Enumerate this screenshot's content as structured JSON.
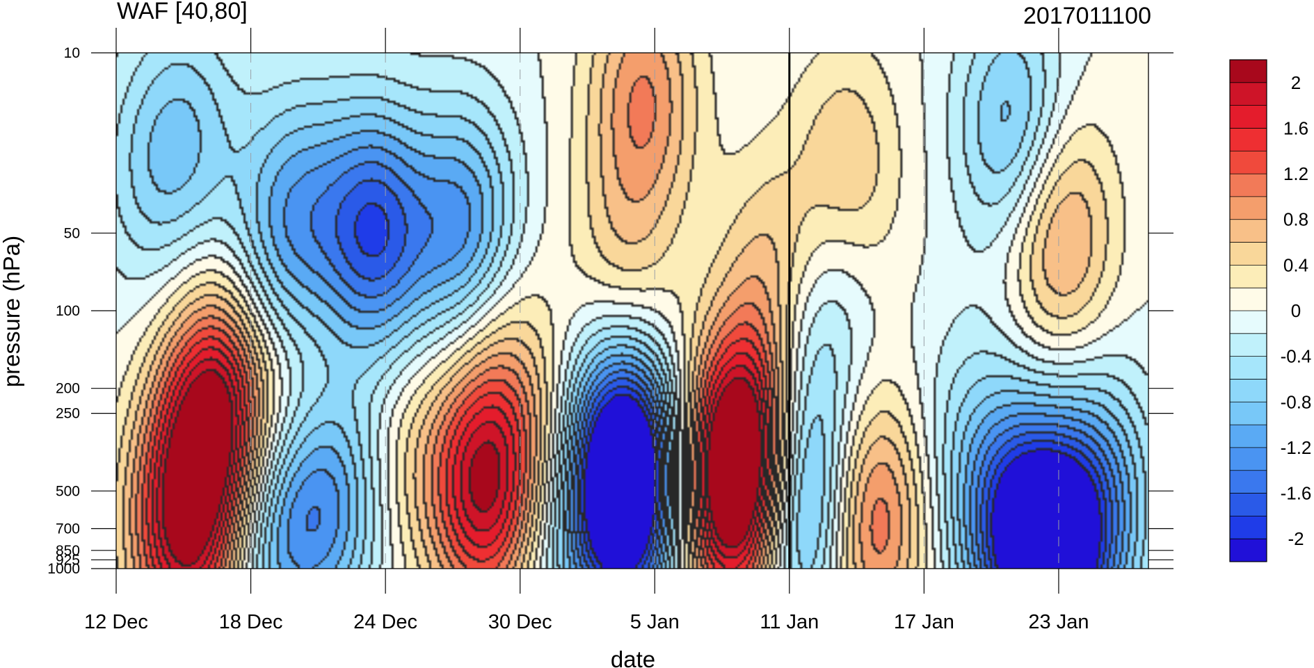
{
  "chart_data": {
    "type": "heatmap",
    "title": "WAF [40,80]",
    "subtitle": "2017011100",
    "xlabel": "date",
    "ylabel": "pressure (hPa)",
    "y_scale": "log",
    "y_inverted": true,
    "ylim": [
      1000,
      10
    ],
    "xlim": [
      "2016-12-12",
      "2017-01-27"
    ],
    "x_ticks": [
      {
        "date": "2016-12-12",
        "label": "12 Dec"
      },
      {
        "date": "2016-12-18",
        "label": "18 Dec"
      },
      {
        "date": "2016-12-24",
        "label": "24 Dec"
      },
      {
        "date": "2016-12-30",
        "label": "30 Dec"
      },
      {
        "date": "2017-01-05",
        "label": "5 Jan"
      },
      {
        "date": "2017-01-11",
        "label": "11 Jan"
      },
      {
        "date": "2017-01-17",
        "label": "17 Jan"
      },
      {
        "date": "2017-01-23",
        "label": "23 Jan"
      }
    ],
    "y_ticks": [
      {
        "value": 10,
        "label": "10"
      },
      {
        "value": 50,
        "label": "50"
      },
      {
        "value": 100,
        "label": "100"
      },
      {
        "value": 200,
        "label": "200"
      },
      {
        "value": 250,
        "label": "250"
      },
      {
        "value": 500,
        "label": "500"
      },
      {
        "value": 700,
        "label": "700"
      },
      {
        "value": 850,
        "label": "850"
      },
      {
        "value": 925,
        "label": "925"
      },
      {
        "value": 1000,
        "label": "1000"
      }
    ],
    "vertical_marker": {
      "date": "2017-01-11",
      "style": "solid-black"
    },
    "colorbar": {
      "levels": [
        -2.2,
        -2,
        -1.8,
        -1.6,
        -1.4,
        -1.2,
        -1,
        -0.8,
        -0.6,
        -0.4,
        -0.2,
        0,
        0.2,
        0.4,
        0.6,
        0.8,
        1,
        1.2,
        1.4,
        1.6,
        1.8,
        2,
        2.2
      ],
      "colors": [
        "#2010d8",
        "#1f3ce8",
        "#2a5ae8",
        "#3a78ee",
        "#4a94f2",
        "#5aaaf4",
        "#78c8f8",
        "#8ed8fa",
        "#a6e6fb",
        "#c0f1fb",
        "#e6fbfd",
        "#fffbe8",
        "#fcedb8",
        "#f9d79a",
        "#f8c088",
        "#f49e6c",
        "#f27a58",
        "#f04a3c",
        "#ee2f32",
        "#e41c2c",
        "#ce1428",
        "#a8081c"
      ],
      "tick_labels": [
        "2",
        "1.6",
        "1.2",
        "0.8",
        "0.4",
        "0",
        "-0.4",
        "-0.8",
        "-1.2",
        "-1.6",
        "-2"
      ],
      "tick_values": [
        2,
        1.6,
        1.2,
        0.8,
        0.4,
        0,
        -0.4,
        -0.8,
        -1.2,
        -1.6,
        -2
      ]
    },
    "anomalies": [
      {
        "date": "2016-12-16.5",
        "pressure": 250,
        "value": 2.1
      },
      {
        "date": "2016-12-15",
        "pressure": 700,
        "value": 1.9
      },
      {
        "date": "2016-12-20.5",
        "pressure": 250,
        "value": 0.5
      },
      {
        "date": "2016-12-28.5",
        "pressure": 500,
        "value": 2.0
      },
      {
        "date": "2017-01-08.5",
        "pressure": 500,
        "value": 2.3
      },
      {
        "date": "2017-01-09.5",
        "pressure": 300,
        "value": 1.6
      },
      {
        "date": "2017-01-10.6",
        "pressure": 80,
        "value": 1.0
      },
      {
        "date": "2017-01-04.5",
        "pressure": 15,
        "value": 1.0
      },
      {
        "date": "2017-01-03.5",
        "pressure": 80,
        "value": 0.6
      },
      {
        "date": "2017-01-13.5",
        "pressure": 30,
        "value": 0.7
      },
      {
        "date": "2017-01-14.6",
        "pressure": 650,
        "value": 1.3
      },
      {
        "date": "2017-01-23",
        "pressure": 50,
        "value": 1.0
      },
      {
        "date": "2017-01-01",
        "pressure": 320,
        "value": 0.6
      },
      {
        "date": "2016-12-25",
        "pressure": 350,
        "value": 0.4
      },
      {
        "date": "2016-12-29",
        "pressure": 150,
        "value": 0.5
      },
      {
        "date": "2016-12-23.5",
        "pressure": 50,
        "value": -1.7
      },
      {
        "date": "2016-12-27.5",
        "pressure": 50,
        "value": -1.3
      },
      {
        "date": "2016-12-20",
        "pressure": 40,
        "value": -0.9
      },
      {
        "date": "2016-12-13.5",
        "pressure": 30,
        "value": -0.5
      },
      {
        "date": "2016-12-15.3",
        "pressure": 20,
        "value": -0.6
      },
      {
        "date": "2016-12-19",
        "pressure": 80,
        "value": -0.4
      },
      {
        "date": "2016-12-21.5",
        "pressure": 500,
        "value": -1.3
      },
      {
        "date": "2016-12-19",
        "pressure": 700,
        "value": -1.0
      },
      {
        "date": "2017-01-03.2",
        "pressure": 550,
        "value": -2.0
      },
      {
        "date": "2017-01-04.2",
        "pressure": 400,
        "value": -1.4
      },
      {
        "date": "2017-01-02.5",
        "pressure": 230,
        "value": -0.7
      },
      {
        "date": "2017-01-11.4",
        "pressure": 550,
        "value": -1.8
      },
      {
        "date": "2017-01-11.2",
        "pressure": 150,
        "value": -0.8
      },
      {
        "date": "2017-01-12.5",
        "pressure": 70,
        "value": -0.5
      },
      {
        "date": "2017-01-21",
        "pressure": 20,
        "value": -1.0
      },
      {
        "date": "2017-01-23",
        "pressure": 900,
        "value": -2.1
      },
      {
        "date": "2017-01-21",
        "pressure": 700,
        "value": -1.6
      },
      {
        "date": "2017-01-25",
        "pressure": 500,
        "value": -0.9
      },
      {
        "date": "2017-01-19",
        "pressure": 300,
        "value": -0.4
      },
      {
        "date": "2016-12-31",
        "pressure": 900,
        "value": -0.4
      }
    ]
  }
}
